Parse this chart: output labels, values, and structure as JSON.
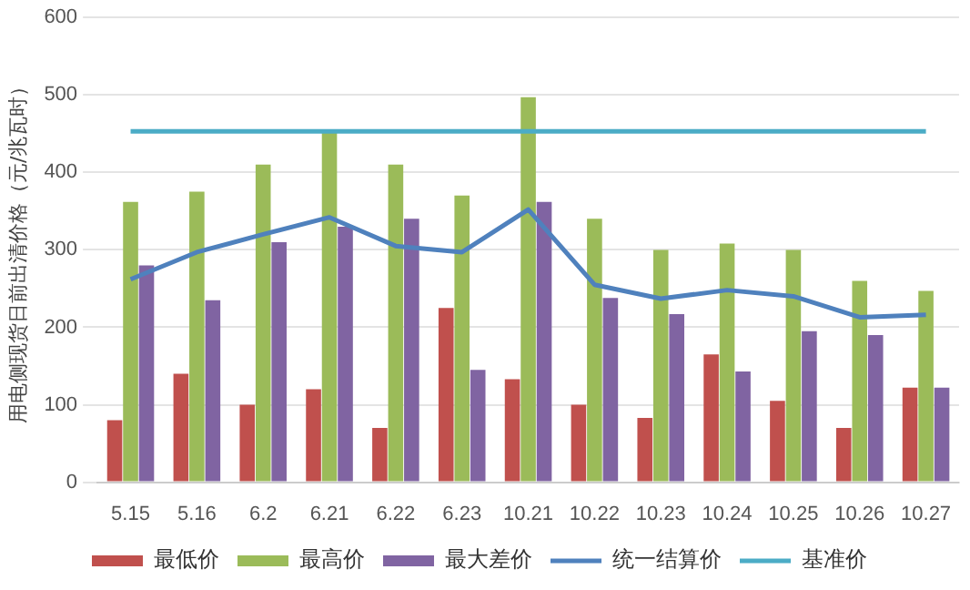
{
  "chart_data": {
    "type": "bar",
    "ylabel": "用电侧现货日前出清价格（元/兆瓦时）",
    "categories": [
      "5.15",
      "5.16",
      "6.2",
      "6.21",
      "6.22",
      "6.23",
      "10.21",
      "10.22",
      "10.23",
      "10.24",
      "10.25",
      "10.26",
      "10.27"
    ],
    "series": [
      {
        "name": "最低价",
        "color": "#c0504d",
        "values": [
          80,
          140,
          100,
          120,
          70,
          225,
          133,
          100,
          83,
          165,
          105,
          70,
          122
        ]
      },
      {
        "name": "最高价",
        "color": "#9bbb59",
        "values": [
          362,
          375,
          410,
          452,
          410,
          370,
          497,
          340,
          300,
          308,
          300,
          260,
          247
        ]
      },
      {
        "name": "最大差价",
        "color": "#8064a2",
        "values": [
          280,
          235,
          310,
          330,
          340,
          145,
          362,
          238,
          217,
          143,
          195,
          190,
          122
        ]
      },
      {
        "name": "统一结算价",
        "type": "line",
        "color": "#4f81bd",
        "values": [
          262,
          297,
          320,
          342,
          305,
          297,
          352,
          255,
          237,
          248,
          240,
          213,
          216
        ]
      },
      {
        "name": "基准价",
        "type": "line",
        "color": "#4bacc6",
        "values": [
          453,
          453,
          453,
          453,
          453,
          453,
          453,
          453,
          453,
          453,
          453,
          453,
          453
        ]
      }
    ],
    "ylim": [
      0,
      600
    ],
    "yticks": [
      0,
      100,
      200,
      300,
      400,
      500,
      600
    ],
    "grid": "y",
    "legend": "bottom",
    "marker": "none",
    "line_style": "solid"
  }
}
